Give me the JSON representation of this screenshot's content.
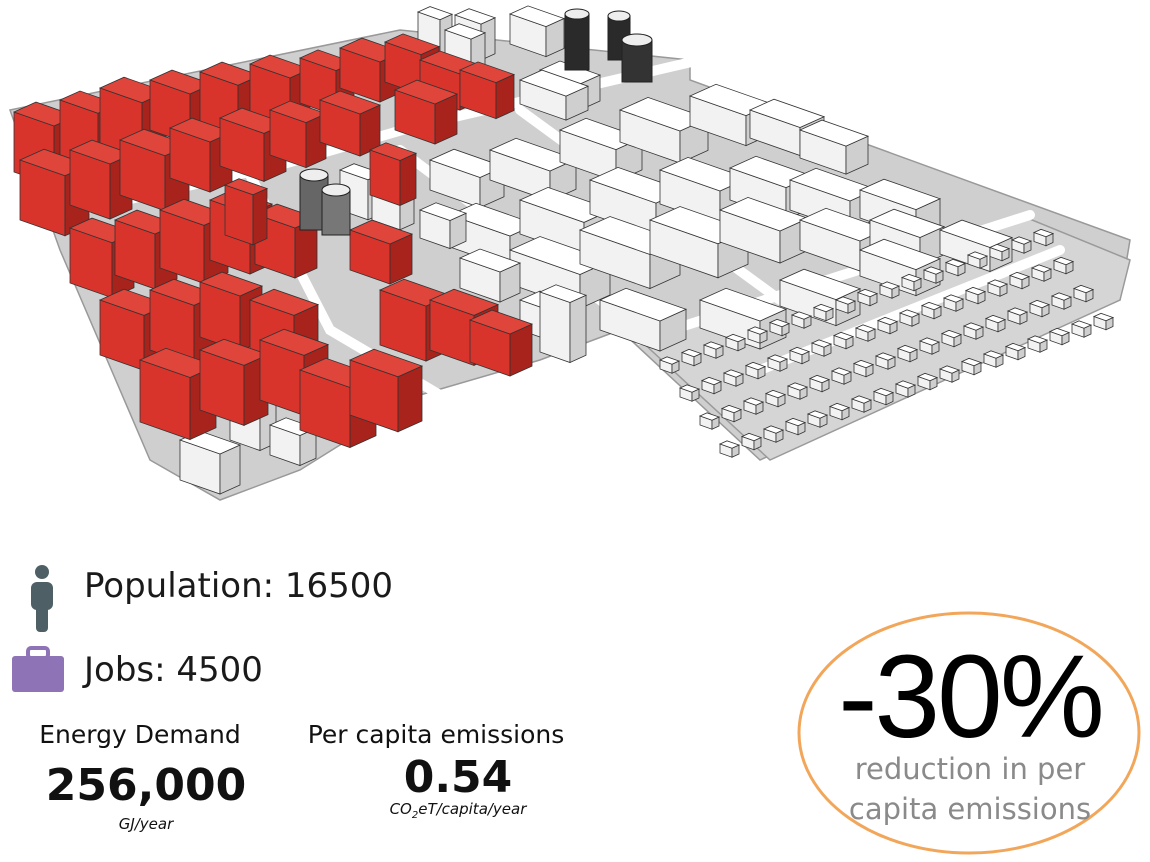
{
  "image": {
    "description": "3D massing model of a city district; red buildings highlight one area, remaining buildings shown in white"
  },
  "colors": {
    "highlight_building": "#d9342b",
    "plain_building": "#f2f2f2",
    "ground": "#cfcfcf",
    "population_icon": "#4f5f66",
    "jobs_icon": "#8e73b7",
    "badge_outline": "#f2a65a"
  },
  "stats": {
    "population": {
      "icon": "person-icon",
      "label": "Population: 16500"
    },
    "jobs": {
      "icon": "briefcase-icon",
      "label": "Jobs: 4500"
    }
  },
  "metrics": {
    "energy": {
      "title": "Energy Demand",
      "value": "256,000",
      "unit": "GJ/year"
    },
    "emissions": {
      "title": "Per capita emissions",
      "value": "0.54",
      "unit_prefix": "CO",
      "unit_sub": "2",
      "unit_suffix": "eT/capita/year"
    }
  },
  "reduction": {
    "percent": "-30%",
    "line1": "reduction in per",
    "line2": "capita emissions"
  }
}
